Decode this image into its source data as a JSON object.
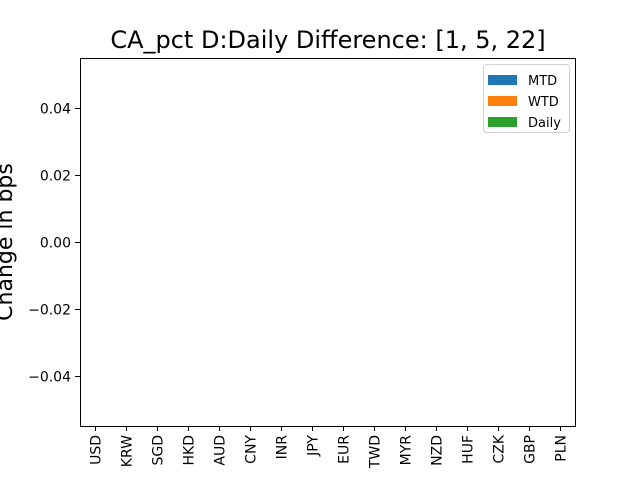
{
  "chart_data": {
    "type": "bar",
    "title": "CA_pct D:Daily Difference: [1, 5, 22]",
    "xlabel": "",
    "ylabel": "Change in bps",
    "categories": [
      "USD",
      "KRW",
      "SGD",
      "HKD",
      "AUD",
      "CNY",
      "INR",
      "JPY",
      "EUR",
      "TWD",
      "MYR",
      "NZD",
      "HUF",
      "CZK",
      "GBP",
      "PLN"
    ],
    "ylim": [
      -0.055,
      0.055
    ],
    "yticks": [
      -0.04,
      -0.02,
      0.0,
      0.02,
      0.04
    ],
    "ytick_labels": [
      "−0.04",
      "−0.02",
      "0.00",
      "0.02",
      "0.04"
    ],
    "grid": false,
    "legend_position": "top-right",
    "series": [
      {
        "name": "MTD",
        "color": "#1f77b4",
        "values": [
          0,
          0,
          0,
          0,
          0,
          0,
          0,
          0,
          0,
          0,
          0,
          0,
          0,
          0,
          0,
          0
        ]
      },
      {
        "name": "WTD",
        "color": "#ff7f0e",
        "values": [
          0,
          0,
          0,
          0,
          0,
          0,
          0,
          0,
          0,
          0,
          0,
          0,
          0,
          0,
          0,
          0
        ]
      },
      {
        "name": "Daily",
        "color": "#2ca02c",
        "values": [
          0,
          0,
          0,
          0,
          0,
          0,
          0,
          0,
          0,
          0,
          0,
          0,
          0,
          0,
          0,
          0
        ]
      }
    ]
  }
}
